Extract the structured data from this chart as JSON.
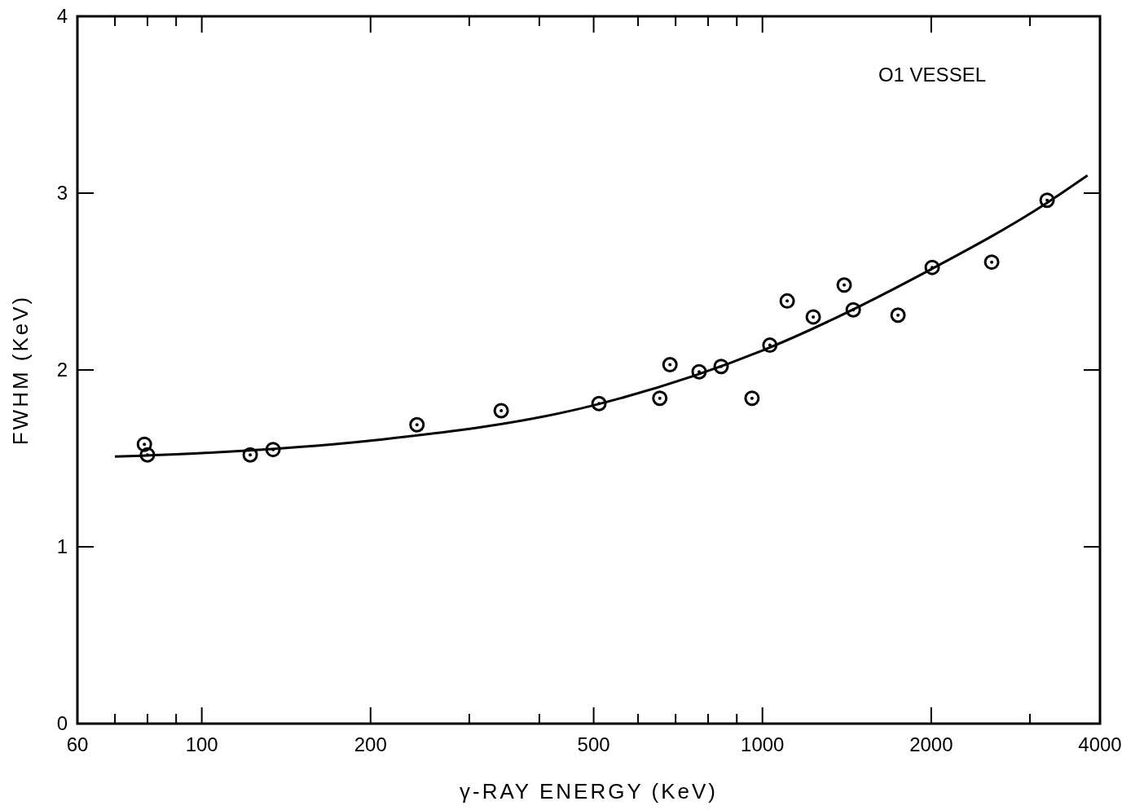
{
  "chart_data": {
    "type": "scatter",
    "xlabel": "γ-RAY ENERGY (KeV)",
    "ylabel": "FWHM (KeV)",
    "annotations": [
      "O1 VESSEL"
    ],
    "log": "x",
    "grid": false,
    "line_style": "solid",
    "xlim": [
      60,
      4000
    ],
    "ylim": [
      0,
      4
    ],
    "xticks": [
      60,
      {
        "value": 70,
        "label": null
      },
      {
        "value": 80,
        "label": null
      },
      {
        "value": 90,
        "label": null
      },
      100,
      200,
      {
        "value": 300,
        "label": null
      },
      {
        "value": 400,
        "label": null
      },
      500,
      {
        "value": 600,
        "label": null
      },
      {
        "value": 700,
        "label": null
      },
      {
        "value": 800,
        "label": null
      },
      {
        "value": 900,
        "label": null
      },
      1000,
      2000,
      {
        "value": 3000,
        "label": null
      },
      4000
    ],
    "yticks": [
      0,
      1,
      2,
      3,
      4
    ],
    "series": [
      {
        "marker": "circle",
        "color": "#000000",
        "x": [
          79,
          80,
          122,
          134,
          242,
          342,
          511,
          656,
          684,
          771,
          844,
          958,
          1031,
          1107,
          1232,
          1399,
          1452,
          1745,
          2008,
          2564,
          3219
        ],
        "values": [
          1.58,
          1.52,
          1.52,
          1.55,
          1.69,
          1.77,
          1.81,
          1.84,
          2.03,
          1.99,
          2.02,
          1.84,
          2.14,
          2.39,
          2.3,
          2.48,
          2.34,
          2.31,
          2.58,
          2.61,
          2.96
        ]
      },
      {
        "type": "line",
        "marker": "none",
        "color": "#000000",
        "x": [
          70,
          100,
          200,
          500,
          1000,
          2000,
          3200,
          3800
        ],
        "values": [
          1.51,
          1.53,
          1.6,
          1.8,
          2.11,
          2.57,
          2.94,
          3.1
        ]
      }
    ]
  }
}
